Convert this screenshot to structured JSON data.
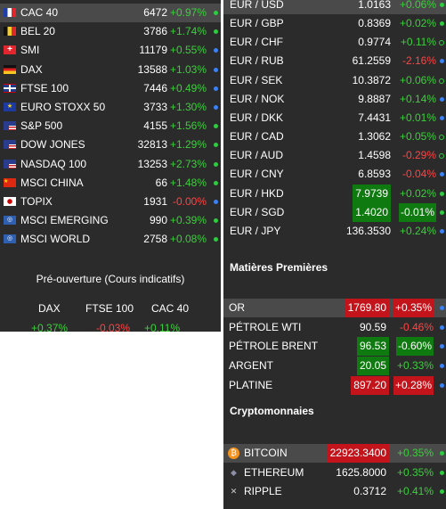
{
  "indices": [
    {
      "name": "CAC 40",
      "price": "6472",
      "change": "+0.97%",
      "dir": "up",
      "flag": "fr",
      "dot": "green",
      "selected": true
    },
    {
      "name": "BEL 20",
      "price": "3786",
      "change": "+1.74%",
      "dir": "up",
      "flag": "be",
      "dot": "green"
    },
    {
      "name": "SMI",
      "price": "11179",
      "change": "+0.55%",
      "dir": "up",
      "flag": "ch",
      "dot": "blue"
    },
    {
      "name": "DAX",
      "price": "13588",
      "change": "+1.03%",
      "dir": "up",
      "flag": "de",
      "dot": "blue"
    },
    {
      "name": "FTSE 100",
      "price": "7446",
      "change": "+0.49%",
      "dir": "up",
      "flag": "gb",
      "dot": "blue"
    },
    {
      "name": "EURO STOXX 50",
      "price": "3733",
      "change": "+1.30%",
      "dir": "up",
      "flag": "eu",
      "dot": "blue"
    },
    {
      "name": "S&P 500",
      "price": "4155",
      "change": "+1.56%",
      "dir": "up",
      "flag": "us",
      "dot": "green"
    },
    {
      "name": "DOW JONES",
      "price": "32813",
      "change": "+1.29%",
      "dir": "up",
      "flag": "us",
      "dot": "green"
    },
    {
      "name": "NASDAQ 100",
      "price": "13253",
      "change": "+2.73%",
      "dir": "up",
      "flag": "us",
      "dot": "green"
    },
    {
      "name": "MSCI CHINA",
      "price": "66",
      "change": "+1.48%",
      "dir": "up",
      "flag": "cn",
      "dot": "green"
    },
    {
      "name": "TOPIX",
      "price": "1931",
      "change": "-0.00%",
      "dir": "dn",
      "flag": "jp",
      "dot": "blue"
    },
    {
      "name": "MSCI EMERGING",
      "price": "990",
      "change": "+0.39%",
      "dir": "up",
      "flag": "un",
      "dot": "green"
    },
    {
      "name": "MSCI WORLD",
      "price": "2758",
      "change": "+0.08%",
      "dir": "up",
      "flag": "un",
      "dot": "green"
    }
  ],
  "preopen": {
    "title": "Pré-ouverture (Cours indicatifs)",
    "items": [
      {
        "name": "DAX",
        "change": "+0.37%",
        "dir": "up"
      },
      {
        "name": "FTSE 100",
        "change": "-0.03%",
        "dir": "dn"
      },
      {
        "name": "CAC 40",
        "change": "+0.11%",
        "dir": "up"
      }
    ]
  },
  "forex": [
    {
      "name": "EUR / USD",
      "price": "1.0163",
      "change": "+0.06%",
      "dir": "up",
      "dot": "green",
      "selected": true
    },
    {
      "name": "EUR / GBP",
      "price": "0.8369",
      "change": "+0.02%",
      "dir": "up",
      "dot": "green"
    },
    {
      "name": "EUR / CHF",
      "price": "0.9774",
      "change": "+0.11%",
      "dir": "up",
      "dot": "green-outline"
    },
    {
      "name": "EUR / RUB",
      "price": "61.2559",
      "change": "-2.16%",
      "dir": "dn",
      "dot": "blue"
    },
    {
      "name": "EUR / SEK",
      "price": "10.3872",
      "change": "+0.06%",
      "dir": "up",
      "dot": "green-outline"
    },
    {
      "name": "EUR / NOK",
      "price": "9.8887",
      "change": "+0.14%",
      "dir": "up",
      "dot": "blue"
    },
    {
      "name": "EUR / DKK",
      "price": "7.4431",
      "change": "+0.01%",
      "dir": "up",
      "dot": "blue"
    },
    {
      "name": "EUR / CAD",
      "price": "1.3062",
      "change": "+0.05%",
      "dir": "up",
      "dot": "green-outline"
    },
    {
      "name": "EUR / AUD",
      "price": "1.4598",
      "change": "-0.29%",
      "dir": "dn",
      "dot": "green-outline"
    },
    {
      "name": "EUR / CNY",
      "price": "6.8593",
      "change": "-0.04%",
      "dir": "dn",
      "dot": "blue"
    },
    {
      "name": "EUR / HKD",
      "price": "7.9739",
      "change": "+0.02%",
      "dir": "up",
      "dot": "green",
      "hl": "up"
    },
    {
      "name": "EUR / SGD",
      "price": "1.4020",
      "change": "-0.01%",
      "dir": "flat",
      "dot": "green",
      "hl": "up",
      "hlchg": "up"
    },
    {
      "name": "EUR / JPY",
      "price": "136.3530",
      "change": "+0.24%",
      "dir": "up",
      "dot": "blue"
    }
  ],
  "commodities_title": "Matières Premières",
  "commodities": [
    {
      "name": "OR",
      "price": "1769.80",
      "change": "+0.35%",
      "dir": "up",
      "dot": "blue",
      "hl": "dn",
      "hlchg": "dn",
      "selected": true
    },
    {
      "name": "PÉTROLE WTI",
      "price": "90.59",
      "change": "-0.46%",
      "dir": "dn",
      "dot": "blue"
    },
    {
      "name": "PÉTROLE BRENT",
      "price": "96.53",
      "change": "-0.60%",
      "dir": "flat",
      "dot": "blue",
      "hl": "up",
      "hlchg": "up"
    },
    {
      "name": "ARGENT",
      "price": "20.05",
      "change": "+0.33%",
      "dir": "up",
      "dot": "blue",
      "hl": "up"
    },
    {
      "name": "PLATINE",
      "price": "897.20",
      "change": "+0.28%",
      "dir": "up",
      "dot": "blue",
      "hl": "dn",
      "hlchg": "dn"
    }
  ],
  "crypto_title": "Cryptomonnaies",
  "crypto": [
    {
      "name": "BITCOIN",
      "price": "22923.3400",
      "change": "+0.35%",
      "dir": "up",
      "dot": "green",
      "icon": "bitcoin",
      "hl": "dn",
      "selected": true
    },
    {
      "name": "ETHEREUM",
      "price": "1625.8000",
      "change": "+0.35%",
      "dir": "up",
      "dot": "green",
      "icon": "ethereum"
    },
    {
      "name": "RIPPLE",
      "price": "0.3712",
      "change": "+0.41%",
      "dir": "up",
      "dot": "green",
      "icon": "ripple"
    }
  ]
}
